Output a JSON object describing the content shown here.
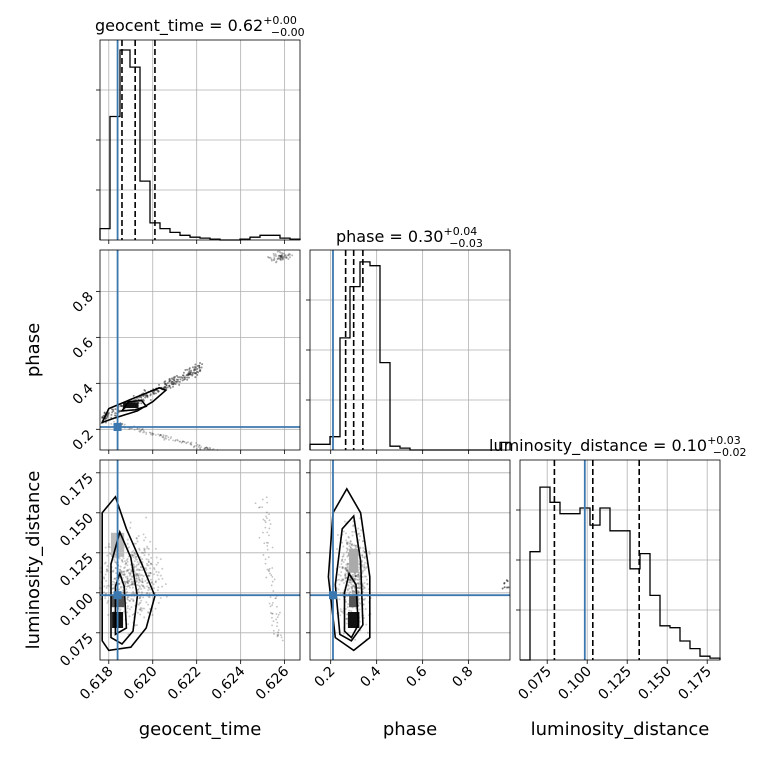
{
  "chart_data": {
    "type": "corner",
    "parameters": [
      {
        "name": "geocent_time",
        "title_prefix": "geocent_time = 0.62",
        "title_sup": "+0.00",
        "title_sub": "−0.00",
        "truth": 0.6184,
        "quantiles": [
          0.6186,
          0.6192,
          0.6201
        ],
        "range": [
          0.6176,
          0.6267
        ],
        "ticks": [
          "0.618",
          "0.620",
          "0.622",
          "0.624",
          "0.626"
        ],
        "tick_values": [
          0.618,
          0.62,
          0.622,
          0.624,
          0.626
        ]
      },
      {
        "name": "phase",
        "title_prefix": "phase = 0.30",
        "title_sup": "+0.04",
        "title_sub": "−0.03",
        "truth": 0.21,
        "quantiles": [
          0.265,
          0.3,
          0.34
        ],
        "range": [
          0.11,
          0.98
        ],
        "ticks": [
          "0.2",
          "0.4",
          "0.6",
          "0.8"
        ],
        "tick_values": [
          0.2,
          0.4,
          0.6,
          0.8
        ]
      },
      {
        "name": "luminosity_distance",
        "title_prefix": "luminosity_distance = 0.10",
        "title_sup": "+0.03",
        "title_sub": "−0.02",
        "truth": 0.0985,
        "quantiles": [
          0.0795,
          0.1035,
          0.1325
        ],
        "range": [
          0.058,
          0.183
        ],
        "ticks": [
          "0.075",
          "0.100",
          "0.125",
          "0.150",
          "0.175"
        ],
        "tick_values": [
          0.075,
          0.1,
          0.125,
          0.15,
          0.175
        ]
      }
    ],
    "histograms": {
      "geocent_time": [
        0.06,
        0.65,
        1.0,
        0.91,
        0.31,
        0.09,
        0.06,
        0.04,
        0.025,
        0.015,
        0.01,
        0.005,
        0.0,
        0.0,
        0.005,
        0.015,
        0.025,
        0.025,
        0.01,
        0.005
      ],
      "phase": [
        0.03,
        0.03,
        0.07,
        0.59,
        0.86,
        0.99,
        0.97,
        0.46,
        0.02,
        0.01,
        0.0,
        0.0,
        0.0,
        0.0,
        0.0,
        0.0,
        0.0,
        0.0,
        0.0,
        0.04
      ],
      "luminosity_distance": [
        0.0,
        0.57,
        0.91,
        0.83,
        0.77,
        0.77,
        0.8,
        0.71,
        0.8,
        0.68,
        0.68,
        0.48,
        0.56,
        0.34,
        0.18,
        0.17,
        0.1,
        0.06,
        0.02,
        0.01
      ]
    },
    "grid": true
  }
}
